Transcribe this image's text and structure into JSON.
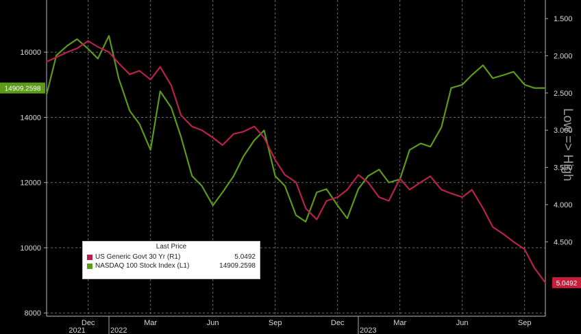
{
  "chart_data": {
    "type": "line",
    "title": "",
    "annotation": "Low => High",
    "left_axis": {
      "ticks": [
        8000,
        10000,
        12000,
        14000,
        16000
      ],
      "range": [
        7900,
        17600
      ]
    },
    "right_axis": {
      "ticks": [
        "1.500",
        "2.000",
        "2.500",
        "3.000",
        "3.500",
        "4.000",
        "4.500"
      ],
      "tick_values": [
        1.5,
        2.0,
        2.5,
        3.0,
        3.5,
        4.0,
        4.5
      ],
      "range": [
        1.25,
        5.5
      ],
      "inverted": true
    },
    "x_axis": {
      "month_labels": [
        "Dec",
        "Mar",
        "Jun",
        "Sep",
        "Dec",
        "Mar",
        "Jun",
        "Sep"
      ],
      "month_positions": [
        "2021-12",
        "2022-03",
        "2022-06",
        "2022-09",
        "2022-12",
        "2023-03",
        "2023-06",
        "2023-09"
      ],
      "year_labels": [
        "2021",
        "2022",
        "2023"
      ],
      "year_positions": [
        "2021-11",
        "2022-01",
        "2023-01"
      ],
      "range": [
        "2021-10",
        "2023-10"
      ]
    },
    "grid": true,
    "legend": {
      "title": "Last Price",
      "placement": "bottom-left",
      "entries": [
        {
          "name": "US Generic Govt 30 Yr  (R1)",
          "value": "5.0492",
          "color": "#b8224a"
        },
        {
          "name": "NASDAQ 100 Stock Index  (L1)",
          "value": "14909.2598",
          "color": "#5c9a1a"
        }
      ]
    },
    "last_value_badges": {
      "left": {
        "text": "14909.2598",
        "color": "#5c9a1a"
      },
      "right": {
        "text": "5.0492",
        "color": "#c41e3a"
      }
    },
    "series": [
      {
        "name": "US Generic Govt 30 Yr  (R1)",
        "axis": "right",
        "color": "#b8224a",
        "x": [
          "2021-10",
          "2021-10-15",
          "2021-11",
          "2021-11-15",
          "2021-12",
          "2021-12-15",
          "2022-01",
          "2022-01-15",
          "2022-02",
          "2022-02-15",
          "2022-03",
          "2022-03-15",
          "2022-04",
          "2022-04-15",
          "2022-05",
          "2022-05-15",
          "2022-06",
          "2022-06-15",
          "2022-07",
          "2022-07-15",
          "2022-08",
          "2022-08-15",
          "2022-09",
          "2022-09-15",
          "2022-10",
          "2022-10-15",
          "2022-11",
          "2022-11-15",
          "2022-12",
          "2022-12-15",
          "2023-01",
          "2023-01-15",
          "2023-02",
          "2023-02-15",
          "2023-03",
          "2023-03-15",
          "2023-04",
          "2023-04-15",
          "2023-05",
          "2023-05-15",
          "2023-06",
          "2023-06-15",
          "2023-07",
          "2023-07-15",
          "2023-08",
          "2023-08-15",
          "2023-09",
          "2023-09-15",
          "2023-10"
        ],
        "values": [
          2.08,
          2.02,
          1.95,
          1.9,
          1.8,
          1.88,
          1.95,
          2.1,
          2.25,
          2.2,
          2.32,
          2.15,
          2.4,
          2.8,
          2.95,
          3.0,
          3.1,
          3.2,
          3.05,
          3.02,
          2.95,
          3.1,
          3.4,
          3.6,
          3.7,
          4.05,
          4.2,
          3.95,
          3.9,
          3.8,
          3.6,
          3.7,
          3.9,
          3.95,
          3.65,
          3.8,
          3.7,
          3.62,
          3.8,
          3.85,
          3.9,
          3.8,
          4.05,
          4.3,
          4.4,
          4.5,
          4.6,
          4.85,
          5.05
        ]
      },
      {
        "name": "NASDAQ 100 Stock Index  (L1)",
        "axis": "left",
        "color": "#5c9a1a",
        "x": [
          "2021-10",
          "2021-10-15",
          "2021-11",
          "2021-11-15",
          "2021-12",
          "2021-12-15",
          "2022-01",
          "2022-01-15",
          "2022-02",
          "2022-02-15",
          "2022-03",
          "2022-03-15",
          "2022-04",
          "2022-04-15",
          "2022-05",
          "2022-05-15",
          "2022-06",
          "2022-06-15",
          "2022-07",
          "2022-07-15",
          "2022-08",
          "2022-08-15",
          "2022-09",
          "2022-09-15",
          "2022-10",
          "2022-10-15",
          "2022-11",
          "2022-11-15",
          "2022-12",
          "2022-12-15",
          "2023-01",
          "2023-01-15",
          "2023-02",
          "2023-02-15",
          "2023-03",
          "2023-03-15",
          "2023-04",
          "2023-04-15",
          "2023-05",
          "2023-05-15",
          "2023-06",
          "2023-06-15",
          "2023-07",
          "2023-07-15",
          "2023-08",
          "2023-08-15",
          "2023-09",
          "2023-09-15",
          "2023-10"
        ],
        "values": [
          14700,
          15900,
          16200,
          16400,
          16100,
          15800,
          16500,
          15200,
          14200,
          13800,
          13000,
          14800,
          14300,
          13400,
          12200,
          11900,
          11300,
          11700,
          12200,
          12800,
          13300,
          13600,
          12200,
          11900,
          11000,
          10800,
          11700,
          11800,
          11300,
          10900,
          11800,
          12200,
          12400,
          12000,
          12100,
          13000,
          13200,
          13100,
          13700,
          14900,
          15000,
          15300,
          15600,
          15200,
          15300,
          15400,
          15000,
          14900,
          14900
        ]
      }
    ]
  }
}
